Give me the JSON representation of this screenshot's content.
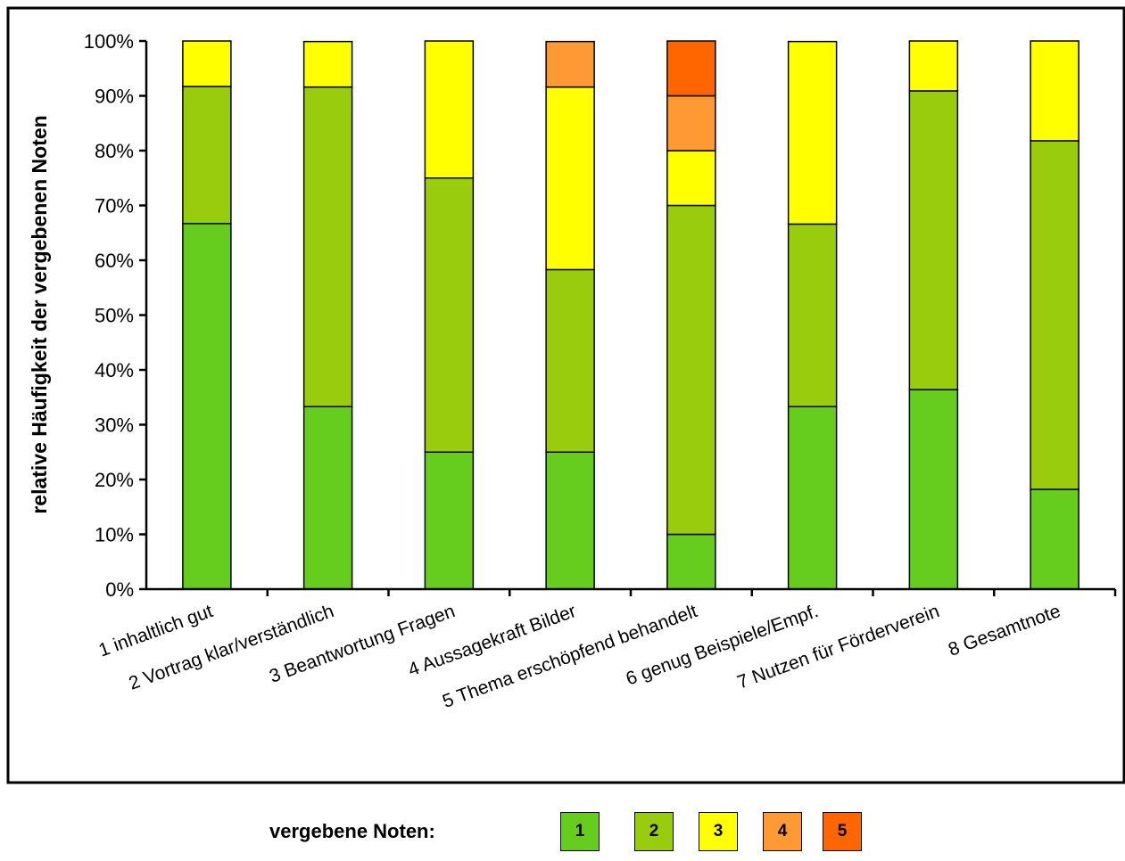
{
  "chart_data": {
    "type": "bar",
    "stacked": true,
    "ylabel": "relative Häufigkeit der vergebenen Noten",
    "xlabel": "",
    "ylim": [
      0,
      100
    ],
    "yticks": [
      "0%",
      "10%",
      "20%",
      "30%",
      "40%",
      "50%",
      "60%",
      "70%",
      "80%",
      "90%",
      "100%"
    ],
    "categories": [
      "1 inhaltlich gut",
      "2 Vortrag klar/verständlich",
      "3 Beantwortung Fragen",
      "4 Aussagekraft Bilder",
      "5 Thema erschöpfend behandelt",
      "6 genug Beispiele/Empf.",
      "7 Nutzen für Förderverein",
      "8 Gesamtnote"
    ],
    "series": [
      {
        "name": "1",
        "color": "#66cc1e",
        "values": [
          66.7,
          33.3,
          25.0,
          25.0,
          10.0,
          33.3,
          36.4,
          18.2
        ]
      },
      {
        "name": "2",
        "color": "#99cc0c",
        "values": [
          25.0,
          58.3,
          50.0,
          33.3,
          60.0,
          33.3,
          54.5,
          63.6
        ]
      },
      {
        "name": "3",
        "color": "#ffff00",
        "values": [
          8.3,
          8.3,
          25.0,
          33.3,
          10.0,
          33.3,
          9.1,
          18.2
        ]
      },
      {
        "name": "4",
        "color": "#ff9933",
        "values": [
          0,
          0,
          0,
          8.3,
          10.0,
          0,
          0,
          0
        ]
      },
      {
        "name": "5",
        "color": "#ff6600",
        "values": [
          0,
          0,
          0,
          0,
          10.0,
          0,
          0,
          0
        ]
      }
    ],
    "legend": {
      "title": "vergebene  Noten:",
      "placement": "bottom"
    }
  }
}
